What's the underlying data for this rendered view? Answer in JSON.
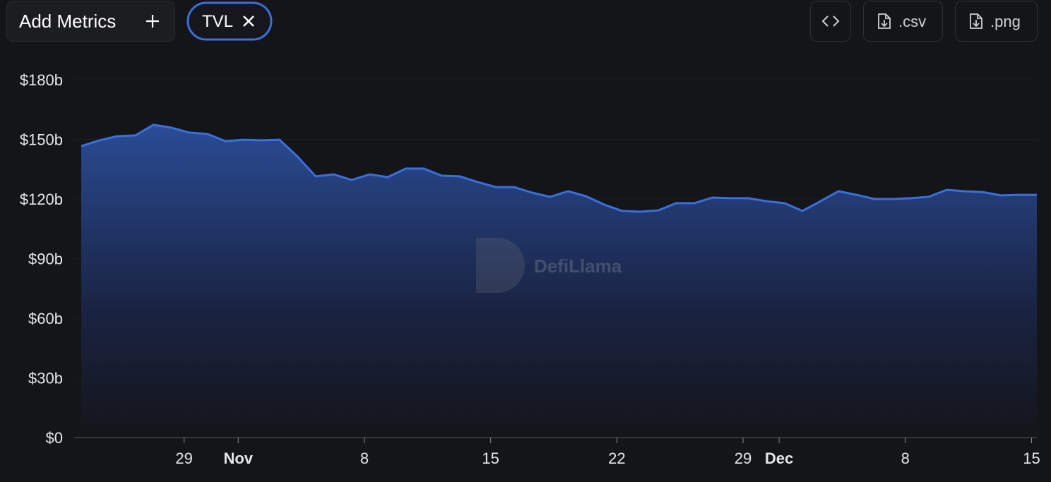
{
  "toolbar": {
    "add_metrics": "Add Metrics",
    "metric": "TVL",
    "csv": ".csv",
    "png": ".png"
  },
  "watermark": "DefiLlama",
  "chart_data": {
    "type": "area",
    "x": [
      "Oct 23",
      "Oct 24",
      "Oct 25",
      "Oct 26",
      "Oct 27",
      "Oct 28",
      "Oct 29",
      "Oct 30",
      "Oct 31",
      "Nov 1",
      "Nov 2",
      "Nov 3",
      "Nov 4",
      "Nov 5",
      "Nov 6",
      "Nov 7",
      "Nov 8",
      "Nov 9",
      "Nov 10",
      "Nov 11",
      "Nov 12",
      "Nov 13",
      "Nov 14",
      "Nov 15",
      "Nov 16",
      "Nov 17",
      "Nov 18",
      "Nov 19",
      "Nov 20",
      "Nov 21",
      "Nov 22",
      "Nov 23",
      "Nov 24",
      "Nov 25",
      "Nov 26",
      "Nov 27",
      "Nov 28",
      "Nov 29",
      "Nov 30",
      "Dec 1",
      "Dec 2",
      "Dec 3",
      "Dec 4",
      "Dec 5",
      "Dec 6",
      "Dec 7",
      "Dec 8",
      "Dec 9",
      "Dec 10",
      "Dec 11",
      "Dec 12",
      "Dec 13",
      "Dec 14",
      "Dec 15"
    ],
    "series": [
      {
        "name": "TVL",
        "color": "#3a6fdc",
        "values": [
          146.6,
          149.5,
          151.6,
          152,
          157.3,
          155.9,
          153.4,
          152.7,
          149.1,
          149.8,
          149.5,
          149.8,
          141.3,
          131.4,
          132.4,
          129.6,
          132.4,
          131,
          135.3,
          135.3,
          131.7,
          131.4,
          128.5,
          126,
          126,
          123.2,
          121.1,
          123.9,
          121.4,
          117.2,
          114,
          113.6,
          114.3,
          117.9,
          117.9,
          120.7,
          120.4,
          120.4,
          118.9,
          117.9,
          114,
          118.9,
          123.9,
          122.1,
          120,
          120,
          120.4,
          121.1,
          124.6,
          123.9,
          123.5,
          121.8,
          122.1,
          122.1
        ]
      }
    ],
    "ylim": [
      0,
      180
    ],
    "yticks": [
      {
        "value": 0,
        "label": "$0"
      },
      {
        "value": 30,
        "label": "$30b"
      },
      {
        "value": 60,
        "label": "$60b"
      },
      {
        "value": 90,
        "label": "$90b"
      },
      {
        "value": 120,
        "label": "$120b"
      },
      {
        "value": 150,
        "label": "$150b"
      },
      {
        "value": 180,
        "label": "$180b"
      }
    ],
    "xticks": [
      {
        "value": "Oct 29",
        "label": "29"
      },
      {
        "value": "Nov 1",
        "label": "Nov"
      },
      {
        "value": "Nov 8",
        "label": "8"
      },
      {
        "value": "Nov 15",
        "label": "15"
      },
      {
        "value": "Nov 22",
        "label": "22"
      },
      {
        "value": "Nov 29",
        "label": "29"
      },
      {
        "value": "Dec 1",
        "label": "Dec"
      },
      {
        "value": "Dec 8",
        "label": "8"
      },
      {
        "value": "Dec 15",
        "label": "15"
      }
    ],
    "grid": true
  }
}
